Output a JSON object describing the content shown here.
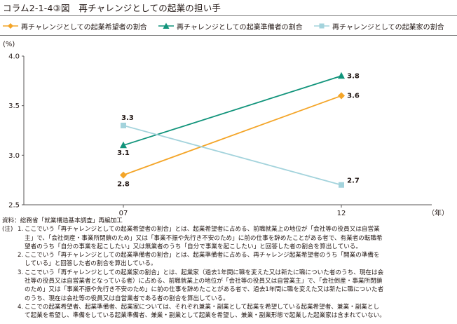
{
  "header": {
    "title": "コラム2-1-4③図　再チャレンジとしての起業の担い手"
  },
  "chart_data": {
    "type": "line",
    "title": "コラム2-1-4③図　再チャレンジとしての起業の担い手",
    "ylabel": "(%)",
    "xlabel": "（年）",
    "categories": [
      "07",
      "12"
    ],
    "ylim": [
      2.5,
      4.0
    ],
    "yticks": [
      "2.5",
      "3.0",
      "3.5",
      "4.0"
    ],
    "grid": false,
    "legend_position": "top",
    "series": [
      {
        "name": "再チャレンジとしての起業希望者の割合",
        "values": [
          2.8,
          3.6
        ],
        "labels": [
          "2.8",
          "3.6"
        ],
        "color": "#f4a528",
        "marker": "diamond"
      },
      {
        "name": "再チャレンジとしての起業準備者の割合",
        "values": [
          3.1,
          3.8
        ],
        "labels": [
          "3.1",
          "3.8"
        ],
        "color": "#11947b",
        "marker": "triangle"
      },
      {
        "name": "再チャレンジとしての起業家の割合",
        "values": [
          3.3,
          2.7
        ],
        "labels": [
          "3.3",
          "2.7"
        ],
        "color": "#a3d3dc",
        "marker": "square"
      }
    ]
  },
  "notes": {
    "source_label": "資料：",
    "source": "総務省「就業構造基本調査」再編加工",
    "notes_label": "(注)",
    "items": [
      {
        "num": "1.",
        "lines": [
          "ここでいう「再チャレンジとしての起業希望者の割合」とは、起業希望者に占める、前職就業上の地位が「会社等の役員又は自営業",
          "主」で、「会社倒産・事業所閉鎖のため」又は「事業不振や先行き不安のため」に前の仕事を辞めたことがある者で、有業者の転職希",
          "望者のうち「自分の事業を起こしたい」又は無業者のうち「自分で事業を起こしたい」と回答した者の割合を算出している。"
        ]
      },
      {
        "num": "2.",
        "lines": [
          "ここでいう「再チャレンジとしての起業準備者の割合」とは、起業準備者に占める、再チャレンジ起業希望者のうち「開業の準備を",
          "している」と回答した者の割合を算出している。"
        ]
      },
      {
        "num": "3.",
        "lines": [
          "ここでいう「再チャレンジとしての起業家の割合」とは、起業家（過去1年間に職を変えた又は新たに職についた者のうち、現在は会",
          "社等の役員又は自営業者となっている者）に占める、前職就業上の地位が「会社等の役員又は自営業主」で、「会社倒産・事業所閉鎖",
          "のため」又は「事業不振や先行き不安のため」に前の仕事を辞めたことがある者で、過去1年間に職を変えた又は新たに職についた者",
          "のうち、現在は会社等の役員又は自営業者である者の割合を算出している。"
        ]
      },
      {
        "num": "4.",
        "lines": [
          "ここでの起業希望者、起業準備者、起業家については、それぞれ兼業・副業として起業を希望している起業希望者、兼業・副業とし",
          "て起業を希望し、準備をしている起業準備者、兼業・副業として起業を希望し、兼業・副業形態で起業した起業家は含まれていない。"
        ]
      }
    ]
  }
}
